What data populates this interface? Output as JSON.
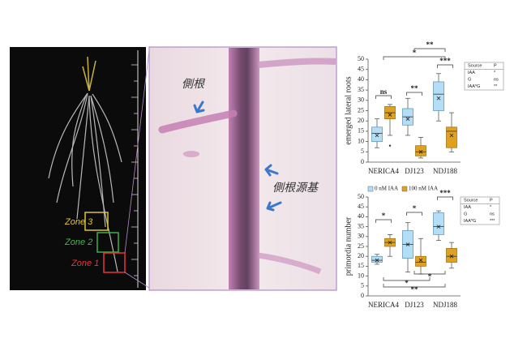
{
  "photo_left": {
    "labels": [
      "Zone 3",
      "Zone 2",
      "Zone 1"
    ]
  },
  "photo_middle": {
    "labels": [
      "側根",
      "側根源基"
    ]
  },
  "chart_data": [
    {
      "type": "box",
      "y_label": "emerged lateral roots",
      "categories": [
        "NERICA4",
        "DJ123",
        "NDJ188"
      ],
      "ylim": [
        0,
        50
      ],
      "yticks": [
        0,
        5,
        10,
        15,
        20,
        25,
        30,
        35,
        40,
        45,
        50
      ],
      "series": [
        {
          "color": "#b3def5",
          "min": [
            7,
            13,
            20
          ],
          "q1": [
            10,
            18,
            25
          ],
          "median": [
            14,
            22,
            33
          ],
          "q3": [
            17,
            26,
            39
          ],
          "max": [
            21,
            31,
            43
          ],
          "mean": [
            13,
            21,
            31
          ]
        },
        {
          "color": "#e0a21e",
          "min": [
            13,
            2,
            5
          ],
          "q1": [
            21,
            3,
            7
          ],
          "median": [
            24,
            5,
            15
          ],
          "q3": [
            27,
            8,
            17
          ],
          "max": [
            28,
            12,
            24
          ],
          "mean": [
            23,
            5,
            13
          ],
          "outliers": [
            8
          ]
        }
      ],
      "annotations": [
        "ns",
        "**",
        "***",
        "*",
        "**"
      ],
      "stats_table": {
        "header": [
          "Source",
          "P"
        ],
        "rows": [
          [
            "IAA",
            "*"
          ],
          [
            "G",
            "ns"
          ],
          [
            "IAA*G",
            "**"
          ]
        ]
      }
    },
    {
      "type": "box",
      "y_label": "primordia number",
      "categories": [
        "NERICA4",
        "DJ123",
        "NDJ188"
      ],
      "ylim": [
        0,
        50
      ],
      "yticks": [
        0,
        5,
        10,
        15,
        20,
        25,
        30,
        35,
        40,
        45,
        50
      ],
      "series": [
        {
          "name": "0 nM IAA",
          "color": "#b3def5",
          "min": [
            16,
            12,
            28
          ],
          "q1": [
            17,
            19,
            31
          ],
          "median": [
            18,
            26,
            35
          ],
          "q3": [
            20,
            33,
            42
          ],
          "max": [
            21,
            37,
            43
          ],
          "mean": [
            18,
            26,
            35
          ]
        },
        {
          "name": "100 nM IAA",
          "color": "#e0a21e",
          "min": [
            20,
            11,
            14
          ],
          "q1": [
            25,
            15,
            17
          ],
          "median": [
            27,
            17,
            20
          ],
          "q3": [
            29,
            20,
            24
          ],
          "max": [
            31,
            29,
            27
          ],
          "mean": [
            27,
            18,
            20
          ]
        }
      ],
      "annotations": [
        "*",
        "*",
        "***",
        "*",
        "*",
        "**"
      ],
      "stats_table": {
        "header": [
          "Source",
          "P"
        ],
        "rows": [
          [
            "IAA",
            "*"
          ],
          [
            "G",
            "ns"
          ],
          [
            "IAA*G",
            "***"
          ]
        ]
      }
    }
  ]
}
